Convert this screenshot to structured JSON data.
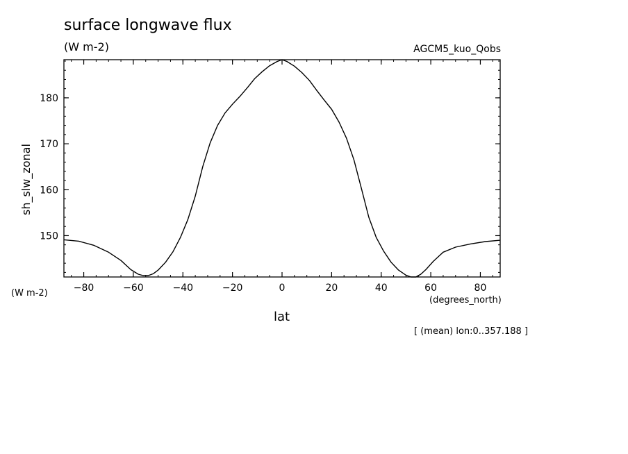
{
  "header": {
    "title": "surface longwave flux",
    "units": "(W m-2)",
    "dataset": "AGCM5_kuo_Qobs"
  },
  "footer": {
    "y_units": "(W m-2)",
    "x_units": "(degrees_north)",
    "note": "[ (mean) lon:0..357.188 ]"
  },
  "chart_data": {
    "type": "line",
    "title": "surface longwave flux",
    "xlabel": "lat",
    "ylabel": "sh_slw_zonal",
    "xlim": [
      -88,
      88
    ],
    "ylim": [
      141,
      188.3
    ],
    "xticks": [
      -80,
      -60,
      -40,
      -20,
      0,
      20,
      40,
      60,
      80
    ],
    "yticks": [
      150,
      160,
      170,
      180
    ],
    "grid": false,
    "series": [
      {
        "x": [
          -88,
          -82,
          -76,
          -70,
          -65,
          -61,
          -58,
          -56,
          -54,
          -52,
          -50,
          -47,
          -44,
          -41,
          -38,
          -35,
          -32,
          -29,
          -26,
          -23,
          -20,
          -17,
          -14,
          -11,
          -8,
          -5,
          -2,
          0,
          2,
          5,
          8,
          11,
          14,
          17,
          20,
          23,
          26,
          29,
          32,
          35,
          38,
          41,
          44,
          47,
          50,
          52,
          54,
          56,
          58,
          61,
          65,
          70,
          76,
          82,
          88
        ],
        "y": [
          149.1,
          148.8,
          147.9,
          146.4,
          144.6,
          142.6,
          141.6,
          141.3,
          141.3,
          141.7,
          142.5,
          144.2,
          146.5,
          149.6,
          153.5,
          158.6,
          165.0,
          170.2,
          174.0,
          176.7,
          178.6,
          180.3,
          182.2,
          184.2,
          185.7,
          187.0,
          187.9,
          188.3,
          187.9,
          186.9,
          185.5,
          183.8,
          181.6,
          179.5,
          177.5,
          174.7,
          171.2,
          166.5,
          160.3,
          154.0,
          149.6,
          146.6,
          144.2,
          142.5,
          141.4,
          141.0,
          141.0,
          141.6,
          142.6,
          144.4,
          146.4,
          147.5,
          148.2,
          148.7,
          149.0
        ]
      }
    ]
  }
}
